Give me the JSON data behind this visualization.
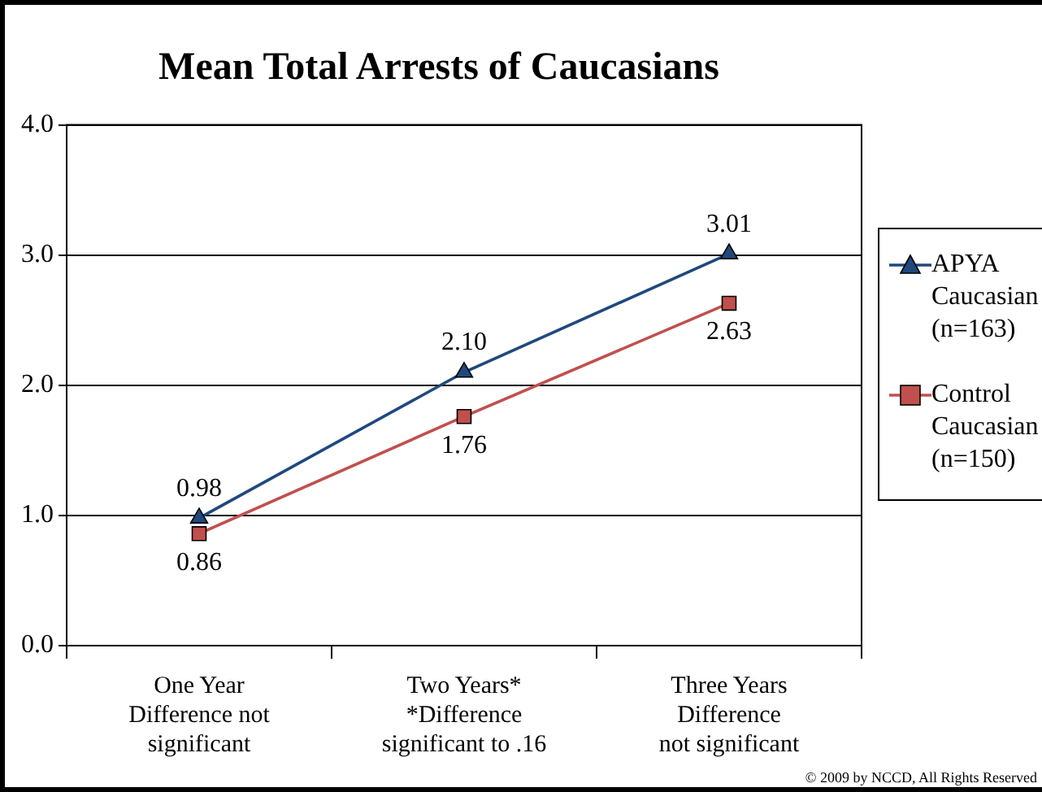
{
  "chart_data": {
    "type": "line",
    "title": "Mean Total Arrests of Caucasians",
    "categories": [
      "One Year\nDifference not\nsignificant",
      "Two Years*\n*Difference\nsignificant to .16",
      "Three Years\nDifference\nnot significant"
    ],
    "series": [
      {
        "name": "APYA\nCaucasian\n(n=163)",
        "color": "#1f497d",
        "marker": "triangle",
        "values": [
          0.98,
          2.1,
          3.01
        ],
        "value_labels": [
          "0.98",
          "2.10",
          "3.01"
        ]
      },
      {
        "name": "Control\nCaucasian\n(n=150)",
        "color": "#c0504d",
        "marker": "square",
        "values": [
          0.86,
          1.76,
          2.63
        ],
        "value_labels": [
          "0.86",
          "1.76",
          "2.63"
        ]
      }
    ],
    "ylim": [
      0,
      4
    ],
    "yticks": [
      {
        "value": 0,
        "label": "0.0"
      },
      {
        "value": 1,
        "label": "1.0"
      },
      {
        "value": 2,
        "label": "2.0"
      },
      {
        "value": 3,
        "label": "3.0"
      },
      {
        "value": 4,
        "label": "4.0"
      }
    ],
    "grid": "y",
    "legend": "right",
    "line_style": "solid",
    "annotations": [
      "© 2009 by NCCD, All Rights Reserved"
    ]
  }
}
